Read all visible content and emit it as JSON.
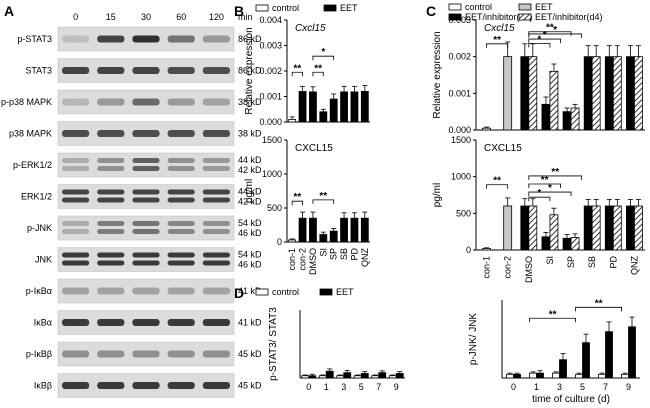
{
  "panel_labels": {
    "A": "A",
    "B": "B",
    "C": "C",
    "D": "D"
  },
  "panel_a": {
    "time_labels": [
      "0",
      "15",
      "30",
      "60",
      "120"
    ],
    "time_unit": "min",
    "rows": [
      {
        "label": "p-STAT3",
        "kd": [
          "86 kD"
        ],
        "bands": [
          1,
          [
            0.1,
            0.75,
            0.85,
            0.5,
            0.3
          ]
        ]
      },
      {
        "label": "STAT3",
        "kd": [
          "86 kD"
        ],
        "bands": [
          1,
          [
            0.75,
            0.75,
            0.75,
            0.7,
            0.7
          ]
        ]
      },
      {
        "label": "p-p38 MAPK",
        "kd": [
          "38 kD"
        ],
        "bands": [
          1,
          [
            0.15,
            0.3,
            0.55,
            0.3,
            0.25
          ]
        ]
      },
      {
        "label": "p38 MAPK",
        "kd": [
          "38 kD"
        ],
        "bands": [
          1,
          [
            0.7,
            0.7,
            0.7,
            0.7,
            0.7
          ]
        ]
      },
      {
        "label": "p-ERK1/2",
        "kd": [
          "44 kD",
          "42 kD"
        ],
        "bands": [
          2,
          [
            0.2,
            0.35,
            0.6,
            0.35,
            0.3
          ]
        ]
      },
      {
        "label": "ERK1/2",
        "kd": [
          "44 kD",
          "42 kD"
        ],
        "bands": [
          2,
          [
            0.75,
            0.75,
            0.75,
            0.75,
            0.75
          ]
        ]
      },
      {
        "label": "p-JNK",
        "kd": [
          "54 kD",
          "46 kD"
        ],
        "bands": [
          2,
          [
            0.2,
            0.45,
            0.5,
            0.4,
            0.35
          ]
        ]
      },
      {
        "label": "JNK",
        "kd": [
          "54 kD",
          "46 kD"
        ],
        "bands": [
          2,
          [
            0.8,
            0.8,
            0.8,
            0.8,
            0.8
          ]
        ]
      },
      {
        "label": "p-IκBα",
        "kd": [
          "41 kD"
        ],
        "bands": [
          1,
          [
            0.25,
            0.25,
            0.25,
            0.25,
            0.25
          ]
        ]
      },
      {
        "label": "IκBα",
        "kd": [
          "41 kD"
        ],
        "bands": [
          1,
          [
            0.8,
            0.8,
            0.8,
            0.8,
            0.8
          ]
        ]
      },
      {
        "label": "p-IκBβ",
        "kd": [
          "45 kD"
        ],
        "bands": [
          1,
          [
            0.35,
            0.35,
            0.35,
            0.35,
            0.35
          ]
        ]
      },
      {
        "label": "IκBβ",
        "kd": [
          "45 kD"
        ],
        "bands": [
          1,
          [
            0.8,
            0.8,
            0.8,
            0.8,
            0.8
          ]
        ]
      }
    ]
  },
  "chart_data": [
    {
      "id": "B-top",
      "type": "bar",
      "title": "Cxcl15",
      "ylabel": "Relative expression",
      "ylim": [
        0,
        0.004
      ],
      "yticks": [
        "0.000",
        "0.001",
        "0.002",
        "0.003",
        "0.004"
      ],
      "legend": [
        {
          "name": "control",
          "color": "#ffffff"
        },
        {
          "name": "EET",
          "color": "#000000"
        }
      ],
      "categories": [
        "con-1",
        "con-2",
        "DMSO",
        "SI",
        "SP",
        "SB",
        "PD",
        "QNZ"
      ],
      "values": [
        0.0001,
        0.0012,
        0.00118,
        0.0004,
        0.0009,
        0.00118,
        0.00118,
        0.0012
      ],
      "errors": [
        0.0001,
        0.0002,
        0.0002,
        0.0001,
        0.0002,
        0.00022,
        0.00022,
        0.00023
      ],
      "fills": [
        "white",
        "black",
        "black",
        "black",
        "black",
        "black",
        "black",
        "black"
      ],
      "significance": [
        {
          "from": 0,
          "to": 1,
          "label": "**",
          "level": 0.00195
        },
        {
          "from": 2,
          "to": 3,
          "label": "**",
          "level": 0.00195
        },
        {
          "from": 2,
          "to": 4,
          "label": "*",
          "level": 0.00258
        }
      ]
    },
    {
      "id": "B-bottom",
      "type": "bar",
      "title": "CXCL15",
      "ylabel": "pg/ml",
      "ylim": [
        0,
        1500
      ],
      "yticks": [
        "0",
        "500",
        "1000",
        "1500"
      ],
      "categories": [
        "con-1",
        "con-2",
        "DMSO",
        "SI",
        "SP",
        "SB",
        "PD",
        "QNZ"
      ],
      "values": [
        30,
        350,
        350,
        110,
        160,
        350,
        350,
        350
      ],
      "errors": [
        15,
        90,
        90,
        35,
        40,
        80,
        80,
        90
      ],
      "fills": [
        "white",
        "black",
        "black",
        "black",
        "black",
        "black",
        "black",
        "black"
      ],
      "significance": [
        {
          "from": 0,
          "to": 1,
          "label": "**",
          "level": 600
        },
        {
          "from": 2,
          "to": 4,
          "label": "**",
          "level": 620
        }
      ]
    },
    {
      "id": "C-top",
      "type": "bar",
      "title": "Cxcl15",
      "ylabel": "Relative expression",
      "ylim": [
        0,
        0.003
      ],
      "yticks": [
        "0.000",
        "0.001",
        "0.002",
        "0.003"
      ],
      "legend": [
        {
          "name": "control",
          "color": "#ffffff"
        },
        {
          "name": "EET",
          "color": "#c8c8c8"
        },
        {
          "name": "EET/inhibitor(d0)",
          "color": "#000000"
        },
        {
          "name": "EET/inhibitor(d4)",
          "color": "hatch"
        }
      ],
      "categories": [
        "con-1",
        "con-2",
        "DMSO",
        "SI",
        "SP",
        "SB",
        "PD",
        "QNZ"
      ],
      "groups": [
        [
          {
            "v": 5e-05,
            "e": 3e-05,
            "f": "white"
          }
        ],
        [
          {
            "v": 0.002,
            "e": 0.0004,
            "f": "gray"
          }
        ],
        [
          {
            "v": 0.002,
            "e": 0.00035,
            "f": "black"
          },
          {
            "v": 0.002,
            "e": 0.00035,
            "f": "hatch"
          }
        ],
        [
          {
            "v": 0.0007,
            "e": 0.0002,
            "f": "black"
          },
          {
            "v": 0.0016,
            "e": 0.0002,
            "f": "hatch"
          }
        ],
        [
          {
            "v": 0.0005,
            "e": 0.0001,
            "f": "black"
          },
          {
            "v": 0.0006,
            "e": 0.0001,
            "f": "hatch"
          }
        ],
        [
          {
            "v": 0.002,
            "e": 0.0003,
            "f": "black"
          },
          {
            "v": 0.002,
            "e": 0.0003,
            "f": "hatch"
          }
        ],
        [
          {
            "v": 0.002,
            "e": 0.0003,
            "f": "black"
          },
          {
            "v": 0.002,
            "e": 0.0003,
            "f": "hatch"
          }
        ],
        [
          {
            "v": 0.002,
            "e": 0.0003,
            "f": "black"
          },
          {
            "v": 0.002,
            "e": 0.0003,
            "f": "hatch"
          }
        ]
      ],
      "significance": [
        {
          "from": 0,
          "to": 1,
          "label": "**",
          "level": 0.00235
        },
        {
          "from": 2,
          "to": 3,
          "label": "*",
          "level": 0.00236
        },
        {
          "from": 2,
          "to": 3.5,
          "label": "*",
          "level": 0.00248
        },
        {
          "from": 2,
          "to": 4,
          "label": "**",
          "level": 0.00268
        },
        {
          "from": 2,
          "to": 4.5,
          "label": "*",
          "level": 0.00262
        }
      ]
    },
    {
      "id": "C-bottom",
      "type": "bar",
      "title": "CXCL15",
      "ylabel": "pg/ml",
      "ylim": [
        0,
        1500
      ],
      "yticks": [
        "0",
        "500",
        "1000",
        "1500"
      ],
      "categories": [
        "con-1",
        "con-2",
        "DMSO",
        "SI",
        "SP",
        "SB",
        "PD",
        "QNZ"
      ],
      "groups": [
        [
          {
            "v": 20,
            "e": 10,
            "f": "white"
          }
        ],
        [
          {
            "v": 600,
            "e": 110,
            "f": "gray"
          }
        ],
        [
          {
            "v": 600,
            "e": 100,
            "f": "black"
          },
          {
            "v": 600,
            "e": 100,
            "f": "hatch"
          }
        ],
        [
          {
            "v": 180,
            "e": 60,
            "f": "black"
          },
          {
            "v": 480,
            "e": 90,
            "f": "hatch"
          }
        ],
        [
          {
            "v": 160,
            "e": 50,
            "f": "black"
          },
          {
            "v": 170,
            "e": 50,
            "f": "hatch"
          }
        ],
        [
          {
            "v": 600,
            "e": 90,
            "f": "black"
          },
          {
            "v": 600,
            "e": 90,
            "f": "hatch"
          }
        ],
        [
          {
            "v": 600,
            "e": 90,
            "f": "black"
          },
          {
            "v": 600,
            "e": 90,
            "f": "hatch"
          }
        ],
        [
          {
            "v": 600,
            "e": 90,
            "f": "black"
          },
          {
            "v": 600,
            "e": 90,
            "f": "hatch"
          }
        ]
      ],
      "significance": [
        {
          "from": 0,
          "to": 1,
          "label": "**",
          "level": 890
        },
        {
          "from": 2,
          "to": 3,
          "label": "*",
          "level": 720
        },
        {
          "from": 2,
          "to": 4,
          "label": "*",
          "level": 790
        },
        {
          "from": 2,
          "to": 3.5,
          "label": "**",
          "level": 900
        },
        {
          "from": 2,
          "to": 4.5,
          "label": "**",
          "level": 1010
        }
      ]
    },
    {
      "id": "D-left",
      "type": "bar",
      "ylabel": "p-STAT3/ STAT3",
      "legend": [
        {
          "name": "control",
          "color": "#ffffff"
        },
        {
          "name": "EET",
          "color": "#000000"
        }
      ],
      "categories": [
        "0",
        "1",
        "3",
        "5",
        "7",
        "9"
      ],
      "ylim": [
        0,
        0.45
      ],
      "series": [
        {
          "name": "control",
          "values": [
            0.015,
            0.015,
            0.015,
            0.015,
            0.015,
            0.015
          ],
          "errors": [
            0.005,
            0.005,
            0.005,
            0.005,
            0.005,
            0.005
          ]
        },
        {
          "name": "EET",
          "values": [
            0.015,
            0.045,
            0.035,
            0.03,
            0.035,
            0.03
          ],
          "errors": [
            0.01,
            0.015,
            0.015,
            0.012,
            0.012,
            0.012
          ]
        }
      ]
    },
    {
      "id": "D-right",
      "type": "bar",
      "ylabel": "p-JNK/ JNK",
      "xlabel": "time of culture (d)",
      "categories": [
        "0",
        "1",
        "3",
        "5",
        "7",
        "9"
      ],
      "ylim": [
        0,
        0.32
      ],
      "series": [
        {
          "name": "control",
          "values": [
            0.015,
            0.02,
            0.02,
            0.015,
            0.015,
            0.015
          ],
          "errors": [
            0.005,
            0.005,
            0.005,
            0.005,
            0.005,
            0.005
          ]
        },
        {
          "name": "EET",
          "values": [
            0.015,
            0.02,
            0.075,
            0.145,
            0.19,
            0.21
          ],
          "errors": [
            0.005,
            0.01,
            0.025,
            0.035,
            0.04,
            0.04
          ]
        }
      ],
      "significance": [
        {
          "from": 0.7,
          "to": 2.7,
          "label": "**",
          "level": 0.245
        },
        {
          "from": 2.7,
          "to": 4.7,
          "label": "**",
          "level": 0.29
        }
      ]
    }
  ]
}
